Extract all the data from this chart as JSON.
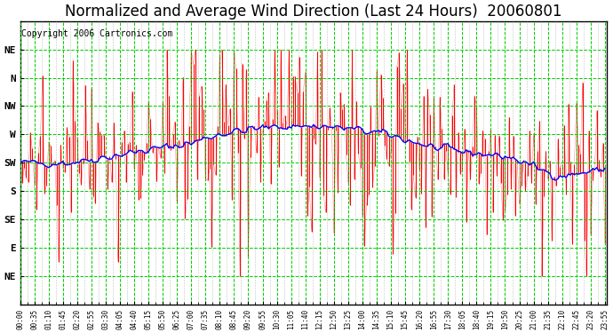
{
  "title": "Normalized and Average Wind Direction (Last 24 Hours)  20060801",
  "copyright": "Copyright 2006 Cartronics.com",
  "ytick_labels": [
    "NE",
    "N",
    "NW",
    "W",
    "SW",
    "S",
    "SE",
    "E",
    "NE"
  ],
  "ytick_values": [
    9,
    8,
    7,
    6,
    5,
    4,
    3,
    2,
    1
  ],
  "ymin": 0,
  "ymax": 10,
  "bg_color": "#ffffff",
  "plot_bg_color": "#ffffff",
  "grid_color": "#00cc00",
  "red_color": "#ff0000",
  "blue_color": "#0000ff",
  "title_fontsize": 12,
  "copyright_fontsize": 7,
  "n_points": 288,
  "seed": 42
}
